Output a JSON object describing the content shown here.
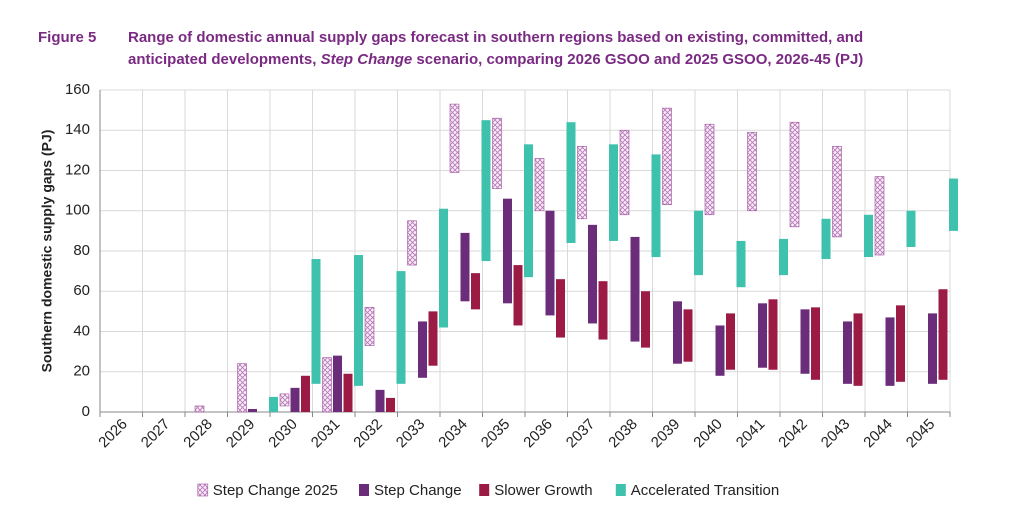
{
  "chart_data": {
    "type": "floating-bar",
    "figure_label": "Figure 5",
    "title_parts": [
      "Range of domestic annual supply gaps forecast in southern regions based on existing, committed, and",
      "anticipated developments,",
      "Step Change",
      "scenario, comparing 2026 GSOO and 2025 GSOO, 2026-45 (PJ)"
    ],
    "y_label": "Southern domestic supply gaps (PJ)",
    "categories": [
      "2026",
      "2027",
      "2028",
      "2029",
      "2030",
      "2031",
      "2032",
      "2033",
      "2034",
      "2035",
      "2036",
      "2037",
      "2038",
      "2039",
      "2040",
      "2041",
      "2042",
      "2043",
      "2044",
      "2045"
    ],
    "ylim": [
      0,
      160
    ],
    "yticks": [
      0,
      20,
      40,
      60,
      80,
      100,
      120,
      140,
      160
    ],
    "grid": true,
    "series": [
      {
        "name": "Step Change 2025",
        "color": "#a0509f",
        "pattern": "crosshatch",
        "low": [
          null,
          null,
          0,
          0,
          3,
          0,
          33,
          73,
          119,
          111,
          100,
          96,
          98,
          103,
          98,
          100,
          92,
          87,
          78,
          null
        ],
        "high": [
          null,
          null,
          3,
          24,
          9,
          27,
          52,
          95,
          153,
          146,
          126,
          132,
          140,
          151,
          143,
          139,
          144,
          132,
          117,
          null
        ]
      },
      {
        "name": "Step Change",
        "color": "#6b2c79",
        "low": [
          null,
          null,
          null,
          0,
          0,
          0,
          0,
          17,
          55,
          54,
          48,
          44,
          35,
          24,
          18,
          22,
          19,
          14,
          13,
          14
        ],
        "high": [
          null,
          null,
          null,
          1.5,
          12,
          28,
          11,
          45,
          89,
          106,
          100,
          93,
          87,
          55,
          43,
          54,
          51,
          45,
          47,
          49
        ]
      },
      {
        "name": "Slower Growth",
        "color": "#9b1b45",
        "low": [
          null,
          null,
          null,
          null,
          0,
          0,
          0,
          23,
          51,
          43,
          37,
          36,
          32,
          25,
          21,
          21,
          16,
          13,
          15,
          16
        ],
        "high": [
          null,
          null,
          null,
          null,
          18,
          19,
          7,
          50,
          69,
          73,
          66,
          65,
          60,
          51,
          49,
          56,
          52,
          49,
          53,
          61
        ]
      },
      {
        "name": "Accelerated Transition",
        "color": "#3ec1ad",
        "low": [
          null,
          null,
          null,
          0,
          14,
          13,
          14,
          42,
          75,
          67,
          84,
          85,
          77,
          68,
          62,
          68,
          76,
          77,
          82,
          90
        ],
        "high": [
          null,
          null,
          null,
          7.5,
          76,
          78,
          70,
          101,
          145,
          133,
          144,
          133,
          128,
          100,
          85,
          86,
          96,
          98,
          100,
          116
        ]
      }
    ]
  }
}
